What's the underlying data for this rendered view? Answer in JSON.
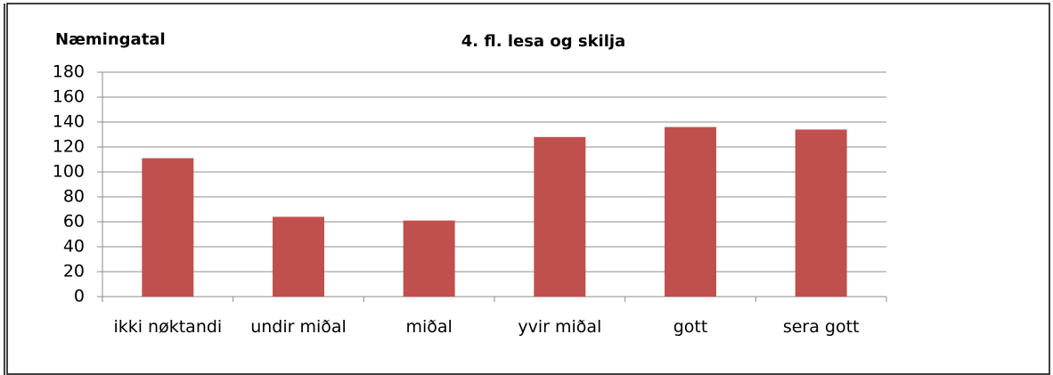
{
  "chart_data": {
    "type": "bar",
    "title": "4. fl. lesa og skilja",
    "y_label": "Næmingatal",
    "categories": [
      "ikki nøktandi",
      "undir miðal",
      "miðal",
      "yvir miðal",
      "gott",
      "sera gott"
    ],
    "values": [
      111,
      64,
      61,
      128,
      136,
      134
    ],
    "color": "#c0504d",
    "ylim": [
      0,
      180
    ],
    "yticks": [
      0,
      20,
      40,
      60,
      80,
      100,
      120,
      140,
      160,
      180
    ],
    "grid": true
  }
}
